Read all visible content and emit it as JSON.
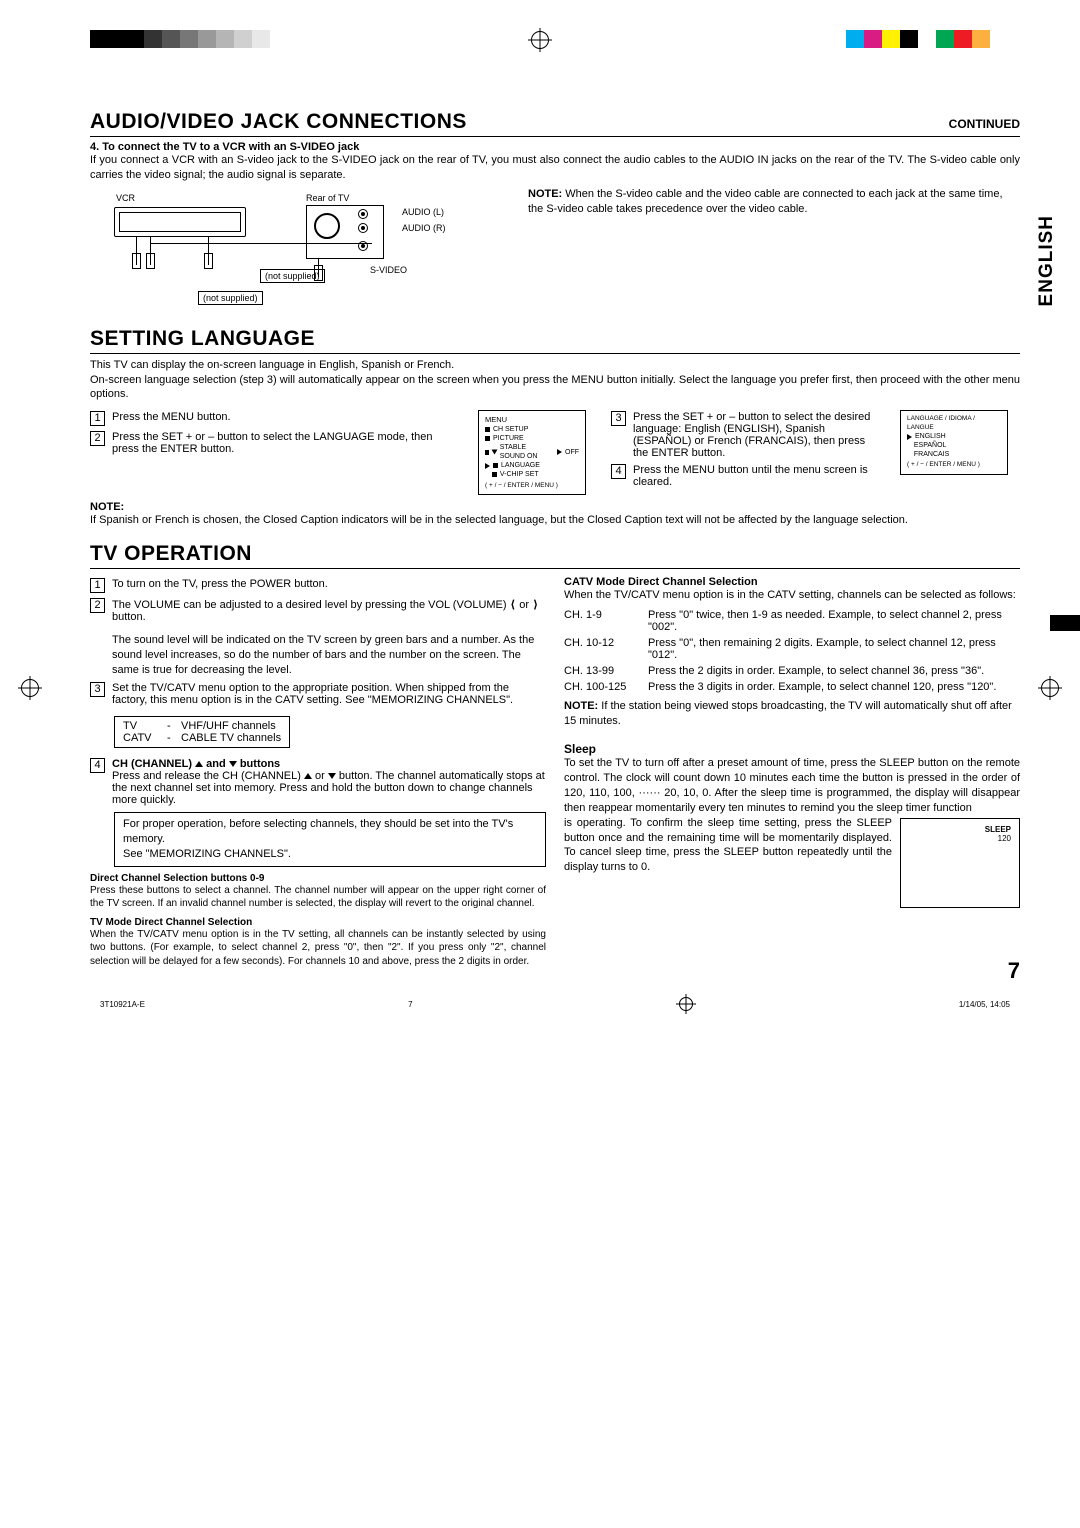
{
  "regmark_grays": [
    "#000000",
    "#000000",
    "#000000",
    "#333333",
    "#555555",
    "#777777",
    "#999999",
    "#b5b5b5",
    "#d0d0d0",
    "#e8e8e8",
    "#ffffff"
  ],
  "regmark_colors": [
    "#00aeef",
    "#d91c84",
    "#fff200",
    "#000000",
    "#ffffff",
    "#00a651",
    "#ed1c24",
    "#fbb040"
  ],
  "header": {
    "title": "AUDIO/VIDEO JACK CONNECTIONS",
    "continued": "CONTINUED"
  },
  "vert_lang": "ENGLISH",
  "av": {
    "sub4": "4. To connect the TV to a VCR with an S-VIDEO jack",
    "body": "If you connect a VCR with an S-video jack to the S-VIDEO jack on the rear of TV, you must also connect the audio cables to the AUDIO IN jacks on the rear of the TV. The S-video cable only carries the video signal; the audio signal is separate.",
    "diagram": {
      "vcr": "VCR",
      "rear": "Rear of TV",
      "audioL": "AUDIO (L)",
      "audioR": "AUDIO (R)",
      "svideo": "S-VIDEO",
      "ns1": "(not supplied)",
      "ns2": "(not supplied)"
    },
    "note_lead": "NOTE:",
    "note_body": "When the S-video cable and the video cable are connected to each jack at the same time, the S-video cable takes precedence over the video cable."
  },
  "lang": {
    "title": "SETTING LANGUAGE",
    "intro1": "This TV can display the on-screen language in English, Spanish or French.",
    "intro2": "On-screen language selection (step 3) will automatically appear on the screen when you press the MENU button initially. Select the language you prefer first, then proceed with the other menu options.",
    "s1": "Press the MENU button.",
    "s2": "Press the SET + or – button to select the LANGUAGE mode, then press the ENTER button.",
    "s3": "Press the SET + or – button to select the desired language: English (ENGLISH), Spanish (ESPAÑOL) or French (FRANCAIS), then press the ENTER button.",
    "s4": "Press the MENU button until the menu screen is cleared.",
    "menu1": {
      "title": "MENU",
      "i1": "CH SETUP",
      "i2": "PICTURE",
      "i3": "STABLE SOUND ON",
      "i3b": "OFF",
      "i4": "LANGUAGE",
      "i5": "V-CHIP SET",
      "foot": "( + / − / ENTER / MENU )"
    },
    "menu2": {
      "title": "LANGUAGE / IDIOMA / LANGUE",
      "i1": "ENGLISH",
      "i2": "ESPAÑOL",
      "i3": "FRANCAIS",
      "foot": "( + / − / ENTER / MENU )"
    },
    "note_h": "NOTE:",
    "note_b": "If Spanish or French is chosen, the Closed Caption indicators will be in the selected language, but the Closed Caption text will not be affected by the language selection."
  },
  "tv": {
    "title": "TV OPERATION",
    "s1": "To turn on the TV, press the POWER button.",
    "s2a": "The VOLUME can be adjusted to a desired level by pressing the VOL (VOLUME) ",
    "s2b": " or ",
    "s2c": " button.",
    "s2d": "The sound level will be indicated on the TV screen by green bars and a number. As the sound level increases, so do the number of bars and the number on the screen. The same is true for decreasing the level.",
    "s3": "Set the TV/CATV menu option to the appropriate position. When shipped from the factory, this menu option is in the CATV setting. See \"MEMORIZING CHANNELS\".",
    "tvcatv": {
      "r1a": "TV",
      "r1b": "VHF/UHF channels",
      "r2a": "CATV",
      "r2b": "CABLE TV channels"
    },
    "s4h": "CH (CHANNEL) ",
    "s4h2": " and ",
    "s4h3": " buttons",
    "s4b": "Press and release the CH (CHANNEL) ",
    "s4b2": " or ",
    "s4b3": " button. The channel automatically stops at the next channel set into memory. Press and hold the button down to change channels more quickly.",
    "boxnote": "For proper operation, before selecting channels, they should be set into the TV's memory.\nSee \"MEMORIZING CHANNELS\".",
    "dcs_h": "Direct Channel Selection buttons 0-9",
    "dcs_b": "Press these buttons to select a channel. The channel number will appear on the upper right corner of the TV screen. If an invalid channel number is selected, the display will revert to the original channel.",
    "tvm_h": "TV Mode Direct Channel Selection",
    "tvm_b": "When the TV/CATV menu option is in the TV setting, all channels can be instantly selected by using two buttons. (For example, to select channel 2, press \"0\", then \"2\". If you press only \"2\", channel selection will be delayed for a few seconds). For channels 10 and above, press the 2 digits in order.",
    "catv_h": "CATV Mode Direct Channel Selection",
    "catv_b": "When the TV/CATV menu option is in the CATV setting, channels can be selected as follows:",
    "ch": [
      {
        "a": "CH. 1-9",
        "b": "Press \"0\" twice, then 1-9 as needed. Example, to select channel 2, press \"002\"."
      },
      {
        "a": "CH. 10-12",
        "b": "Press \"0\", then remaining 2 digits. Example, to select channel 12, press \"012\"."
      },
      {
        "a": "CH. 13-99",
        "b": "Press the 2 digits in order. Example, to select channel 36, press \"36\"."
      },
      {
        "a": "CH. 100-125",
        "b": "Press the 3 digits in order. Example, to select channel 120, press \"120\"."
      }
    ],
    "note2a": "NOTE:",
    "note2b": " If the station being viewed stops broadcasting, the TV will automatically shut off after 15 minutes.",
    "sleep_h": "Sleep",
    "sleep_b1": "To set the TV to turn off after a preset amount of time, press the SLEEP button on the remote control. The clock will count down 10 minutes each time the button is pressed in the order of 120, 110, 100, ······ 20, 10, 0. After the sleep time is programmed, the display will disappear then reappear momentarily every ten minutes to remind you the sleep timer function",
    "sleep_b2": "is operating. To confirm the sleep time setting, press the SLEEP button once and the remaining time will be momentarily displayed. To cancel sleep time, press the SLEEP button repeatedly until the display turns to 0.",
    "sleep_lbl1": "SLEEP",
    "sleep_lbl2": "120"
  },
  "footer": {
    "doc": "3T10921A-E",
    "pg": "7",
    "date": "1/14/05, 14:05"
  },
  "page_number": "7"
}
